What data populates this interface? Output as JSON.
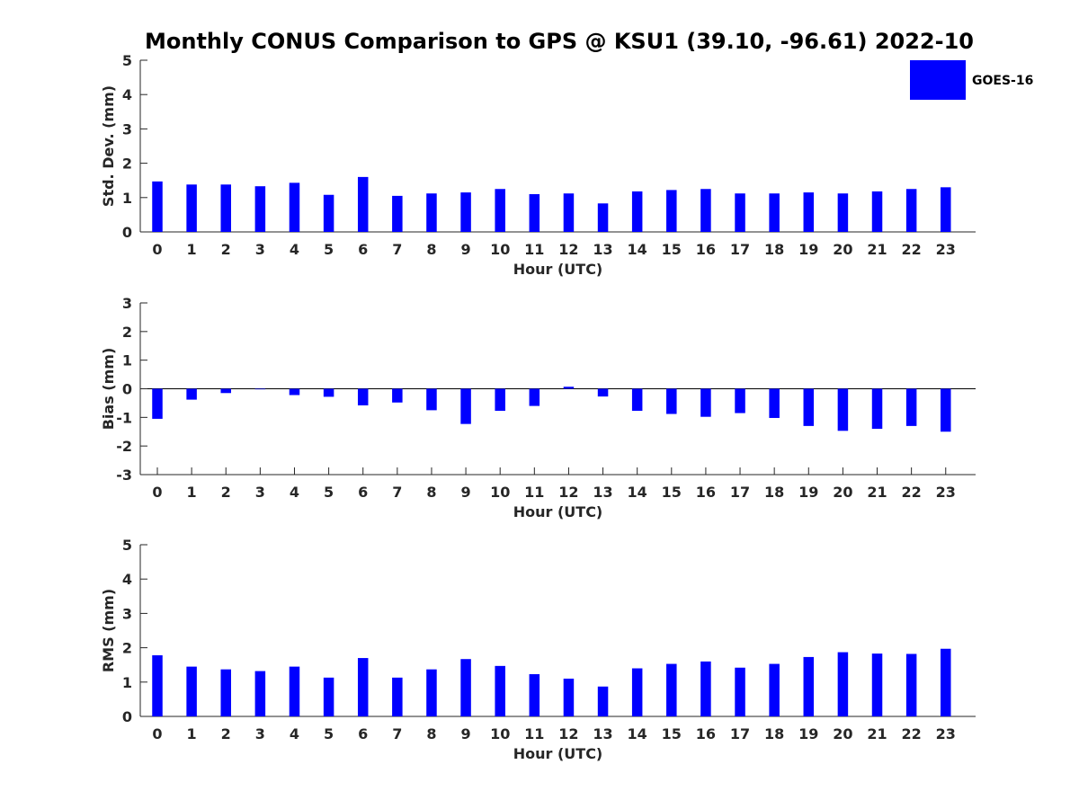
{
  "figure": {
    "title": "Monthly CONUS Comparison to GPS @ KSU1 (39.10, -96.61) 2022-10",
    "legend": {
      "label": "GOES-16",
      "color": "#0000ff"
    }
  },
  "chart_data": [
    {
      "type": "bar",
      "xlabel": "Hour (UTC)",
      "ylabel": "Std. Dev. (mm)",
      "ylim": [
        0,
        5
      ],
      "yticks": [
        0,
        1,
        2,
        3,
        4,
        5
      ],
      "categories": [
        "0",
        "1",
        "2",
        "3",
        "4",
        "5",
        "6",
        "7",
        "8",
        "9",
        "10",
        "11",
        "12",
        "13",
        "14",
        "15",
        "16",
        "17",
        "18",
        "19",
        "20",
        "21",
        "22",
        "23"
      ],
      "series": [
        {
          "name": "GOES-16",
          "color": "#0000ff",
          "values": [
            1.47,
            1.38,
            1.38,
            1.33,
            1.43,
            1.08,
            1.6,
            1.05,
            1.12,
            1.15,
            1.25,
            1.1,
            1.12,
            0.83,
            1.18,
            1.22,
            1.25,
            1.12,
            1.12,
            1.15,
            1.12,
            1.18,
            1.25,
            1.3
          ]
        }
      ],
      "grid": false,
      "legend": "top-right"
    },
    {
      "type": "bar",
      "xlabel": "Hour (UTC)",
      "ylabel": "Bias (mm)",
      "ylim": [
        -3,
        3
      ],
      "yticks": [
        -3,
        -2,
        -1,
        0,
        1,
        2,
        3
      ],
      "categories": [
        "0",
        "1",
        "2",
        "3",
        "4",
        "5",
        "6",
        "7",
        "8",
        "9",
        "10",
        "11",
        "12",
        "13",
        "14",
        "15",
        "16",
        "17",
        "18",
        "19",
        "20",
        "21",
        "22",
        "23"
      ],
      "series": [
        {
          "name": "GOES-16",
          "color": "#0000ff",
          "values": [
            -1.05,
            -0.38,
            -0.15,
            -0.02,
            -0.22,
            -0.28,
            -0.58,
            -0.48,
            -0.75,
            -1.23,
            -0.77,
            -0.6,
            0.07,
            -0.27,
            -0.77,
            -0.88,
            -0.98,
            -0.85,
            -1.02,
            -1.3,
            -1.47,
            -1.4,
            -1.3,
            -1.5
          ]
        }
      ],
      "grid": false
    },
    {
      "type": "bar",
      "xlabel": "Hour (UTC)",
      "ylabel": "RMS (mm)",
      "ylim": [
        0,
        5
      ],
      "yticks": [
        0,
        1,
        2,
        3,
        4,
        5
      ],
      "categories": [
        "0",
        "1",
        "2",
        "3",
        "4",
        "5",
        "6",
        "7",
        "8",
        "9",
        "10",
        "11",
        "12",
        "13",
        "14",
        "15",
        "16",
        "17",
        "18",
        "19",
        "20",
        "21",
        "22",
        "23"
      ],
      "series": [
        {
          "name": "GOES-16",
          "color": "#0000ff",
          "values": [
            1.78,
            1.45,
            1.37,
            1.32,
            1.45,
            1.13,
            1.7,
            1.13,
            1.37,
            1.67,
            1.47,
            1.23,
            1.1,
            0.87,
            1.4,
            1.53,
            1.6,
            1.42,
            1.53,
            1.73,
            1.87,
            1.83,
            1.82,
            1.97
          ]
        }
      ],
      "grid": false
    }
  ]
}
